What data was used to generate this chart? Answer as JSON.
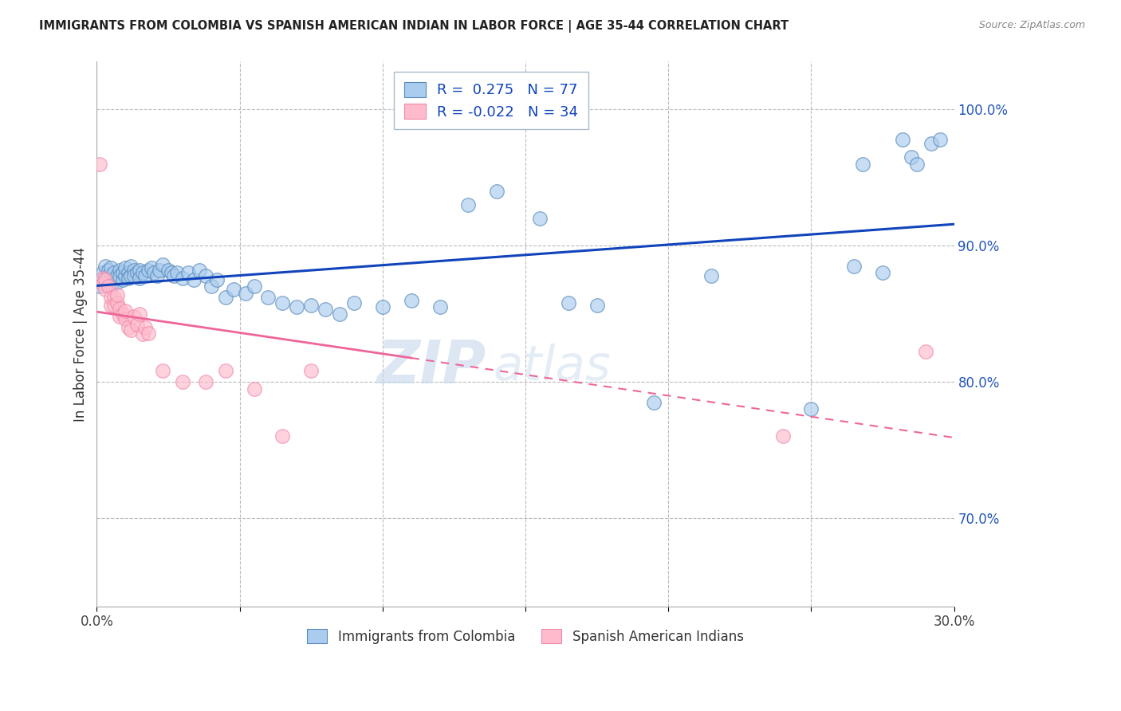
{
  "title": "IMMIGRANTS FROM COLOMBIA VS SPANISH AMERICAN INDIAN IN LABOR FORCE | AGE 35-44 CORRELATION CHART",
  "source": "Source: ZipAtlas.com",
  "ylabel": "In Labor Force | Age 35-44",
  "xlim": [
    0.0,
    0.3
  ],
  "ylim": [
    0.635,
    1.035
  ],
  "r_blue": 0.275,
  "n_blue": 77,
  "r_pink": -0.022,
  "n_pink": 34,
  "blue_fill": "#AACCEE",
  "blue_edge": "#5588BB",
  "pink_fill": "#FFBBCC",
  "pink_edge": "#EE88AA",
  "blue_line_color": "#1144BB",
  "pink_line_color": "#EE6699",
  "legend_label_blue": "Immigrants from Colombia",
  "legend_label_pink": "Spanish American Indians",
  "blue_points_x": [
    0.001,
    0.002,
    0.003,
    0.003,
    0.004,
    0.004,
    0.005,
    0.005,
    0.005,
    0.006,
    0.006,
    0.007,
    0.007,
    0.008,
    0.008,
    0.009,
    0.009,
    0.01,
    0.01,
    0.011,
    0.011,
    0.012,
    0.012,
    0.013,
    0.013,
    0.014,
    0.015,
    0.015,
    0.016,
    0.017,
    0.018,
    0.019,
    0.02,
    0.021,
    0.022,
    0.023,
    0.025,
    0.026,
    0.027,
    0.028,
    0.03,
    0.032,
    0.034,
    0.036,
    0.038,
    0.04,
    0.042,
    0.045,
    0.048,
    0.052,
    0.055,
    0.06,
    0.065,
    0.07,
    0.075,
    0.08,
    0.085,
    0.09,
    0.1,
    0.11,
    0.12,
    0.13,
    0.14,
    0.155,
    0.165,
    0.175,
    0.195,
    0.215,
    0.25,
    0.265,
    0.268,
    0.275,
    0.282,
    0.285,
    0.287,
    0.292,
    0.295
  ],
  "blue_points_y": [
    0.87,
    0.88,
    0.876,
    0.885,
    0.882,
    0.878,
    0.875,
    0.884,
    0.87,
    0.876,
    0.88,
    0.878,
    0.873,
    0.882,
    0.877,
    0.875,
    0.88,
    0.878,
    0.884,
    0.88,
    0.876,
    0.885,
    0.878,
    0.882,
    0.878,
    0.88,
    0.882,
    0.876,
    0.88,
    0.878,
    0.882,
    0.884,
    0.88,
    0.878,
    0.882,
    0.886,
    0.882,
    0.88,
    0.878,
    0.88,
    0.876,
    0.88,
    0.875,
    0.882,
    0.878,
    0.87,
    0.875,
    0.862,
    0.868,
    0.865,
    0.87,
    0.862,
    0.858,
    0.855,
    0.856,
    0.853,
    0.85,
    0.858,
    0.855,
    0.86,
    0.855,
    0.93,
    0.94,
    0.92,
    0.858,
    0.856,
    0.785,
    0.878,
    0.78,
    0.885,
    0.96,
    0.88,
    0.978,
    0.965,
    0.96,
    0.975,
    0.978
  ],
  "pink_points_x": [
    0.001,
    0.002,
    0.002,
    0.003,
    0.003,
    0.004,
    0.005,
    0.005,
    0.006,
    0.006,
    0.007,
    0.007,
    0.008,
    0.008,
    0.009,
    0.01,
    0.01,
    0.011,
    0.012,
    0.013,
    0.014,
    0.015,
    0.016,
    0.017,
    0.018,
    0.023,
    0.03,
    0.038,
    0.045,
    0.055,
    0.065,
    0.075,
    0.24,
    0.29
  ],
  "pink_points_y": [
    0.96,
    0.876,
    0.872,
    0.868,
    0.875,
    0.87,
    0.856,
    0.862,
    0.862,
    0.856,
    0.858,
    0.864,
    0.848,
    0.854,
    0.85,
    0.846,
    0.852,
    0.84,
    0.838,
    0.848,
    0.842,
    0.85,
    0.835,
    0.84,
    0.836,
    0.808,
    0.8,
    0.8,
    0.808,
    0.795,
    0.76,
    0.808,
    0.76,
    0.822
  ]
}
